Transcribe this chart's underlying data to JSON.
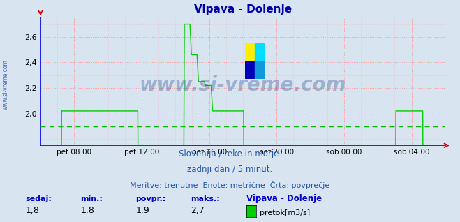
{
  "title": "Vipava - Dolenje",
  "background_color": "#d8e4f0",
  "plot_bg_color": "#d8e4f0",
  "ylabel": "",
  "xlabel": "",
  "ylim": [
    1.75,
    2.75
  ],
  "yticks": [
    2.0,
    2.2,
    2.4,
    2.6
  ],
  "avg_line_y": 1.9,
  "grid_color": "#ff9999",
  "line_color": "#00cc00",
  "avg_line_color": "#00bb00",
  "axis_color": "#0000dd",
  "watermark": "www.si-vreme.com",
  "subtitle1": "Slovenija / reke in morje.",
  "subtitle2": "zadnji dan / 5 minut.",
  "subtitle3": "Meritve: trenutne  Enote: metrične  Črta: povprečje",
  "footer_sedaj_label": "sedaj:",
  "footer_min_label": "min.:",
  "footer_povpr_label": "povpr.:",
  "footer_maks_label": "maks.:",
  "footer_name": "Vipava - Dolenje",
  "footer_sedaj_val": "1,8",
  "footer_min_val": "1,8",
  "footer_povpr_val": "1,9",
  "footer_maks_val": "2,7",
  "footer_legend_label": "pretok[m3/s]",
  "legend_color": "#00cc00",
  "xtick_labels": [
    "pet 08:00",
    "pet 12:00",
    "pet 16:00",
    "pet 20:00",
    "sob 00:00",
    "sob 04:00"
  ],
  "xtick_positions": [
    0.0833,
    0.25,
    0.4167,
    0.5833,
    0.75,
    0.9167
  ],
  "num_points": 288,
  "watermark_color": "#1a3a8a",
  "title_color": "#0000aa",
  "subtitle_color": "#2255aa",
  "footer_label_color": "#0000cc",
  "footer_val_color": "#000000",
  "sidebar_text": "www.si-vreme.com",
  "sidebar_color": "#2255aa"
}
